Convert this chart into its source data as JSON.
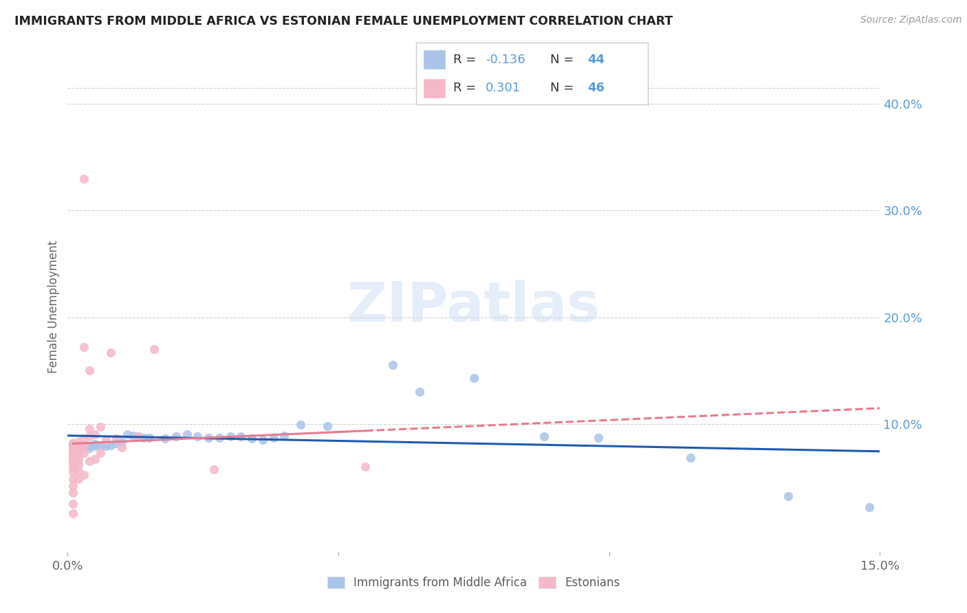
{
  "title": "IMMIGRANTS FROM MIDDLE AFRICA VS ESTONIAN FEMALE UNEMPLOYMENT CORRELATION CHART",
  "source": "Source: ZipAtlas.com",
  "ylabel": "Female Unemployment",
  "right_yticks": [
    "40.0%",
    "30.0%",
    "20.0%",
    "10.0%"
  ],
  "right_ytick_vals": [
    0.4,
    0.3,
    0.2,
    0.1
  ],
  "xlim": [
    0.0,
    0.15
  ],
  "ylim": [
    -0.02,
    0.44
  ],
  "legend_label1": "Immigrants from Middle Africa",
  "legend_label2": "Estonians",
  "blue_color": "#aac4e8",
  "pink_color": "#f5b8c8",
  "blue_line_color": "#1f5aad",
  "pink_line_color": "#e87a90",
  "blue_scatter": [
    [
      0.001,
      0.082
    ],
    [
      0.001,
      0.08
    ],
    [
      0.002,
      0.079
    ],
    [
      0.002,
      0.077
    ],
    [
      0.003,
      0.08
    ],
    [
      0.003,
      0.078
    ],
    [
      0.004,
      0.079
    ],
    [
      0.004,
      0.077
    ],
    [
      0.005,
      0.081
    ],
    [
      0.005,
      0.079
    ],
    [
      0.006,
      0.08
    ],
    [
      0.007,
      0.081
    ],
    [
      0.007,
      0.079
    ],
    [
      0.008,
      0.08
    ],
    [
      0.009,
      0.082
    ],
    [
      0.01,
      0.083
    ],
    [
      0.011,
      0.09
    ],
    [
      0.012,
      0.089
    ],
    [
      0.013,
      0.088
    ],
    [
      0.014,
      0.087
    ],
    [
      0.015,
      0.087
    ],
    [
      0.018,
      0.086
    ],
    [
      0.02,
      0.088
    ],
    [
      0.022,
      0.09
    ],
    [
      0.024,
      0.088
    ],
    [
      0.026,
      0.087
    ],
    [
      0.028,
      0.087
    ],
    [
      0.03,
      0.088
    ],
    [
      0.032,
      0.088
    ],
    [
      0.034,
      0.086
    ],
    [
      0.036,
      0.085
    ],
    [
      0.038,
      0.087
    ],
    [
      0.04,
      0.089
    ],
    [
      0.043,
      0.099
    ],
    [
      0.048,
      0.098
    ],
    [
      0.06,
      0.155
    ],
    [
      0.065,
      0.13
    ],
    [
      0.075,
      0.143
    ],
    [
      0.088,
      0.088
    ],
    [
      0.098,
      0.087
    ],
    [
      0.115,
      0.068
    ],
    [
      0.133,
      0.032
    ],
    [
      0.148,
      0.022
    ]
  ],
  "pink_scatter": [
    [
      0.001,
      0.082
    ],
    [
      0.001,
      0.079
    ],
    [
      0.001,
      0.077
    ],
    [
      0.001,
      0.074
    ],
    [
      0.001,
      0.072
    ],
    [
      0.001,
      0.069
    ],
    [
      0.001,
      0.066
    ],
    [
      0.001,
      0.063
    ],
    [
      0.001,
      0.059
    ],
    [
      0.001,
      0.055
    ],
    [
      0.001,
      0.048
    ],
    [
      0.001,
      0.042
    ],
    [
      0.001,
      0.035
    ],
    [
      0.001,
      0.025
    ],
    [
      0.001,
      0.016
    ],
    [
      0.002,
      0.083
    ],
    [
      0.002,
      0.08
    ],
    [
      0.002,
      0.077
    ],
    [
      0.002,
      0.074
    ],
    [
      0.002,
      0.07
    ],
    [
      0.002,
      0.066
    ],
    [
      0.002,
      0.062
    ],
    [
      0.002,
      0.055
    ],
    [
      0.002,
      0.048
    ],
    [
      0.003,
      0.33
    ],
    [
      0.003,
      0.172
    ],
    [
      0.003,
      0.086
    ],
    [
      0.003,
      0.08
    ],
    [
      0.003,
      0.073
    ],
    [
      0.003,
      0.052
    ],
    [
      0.004,
      0.15
    ],
    [
      0.004,
      0.095
    ],
    [
      0.004,
      0.088
    ],
    [
      0.004,
      0.065
    ],
    [
      0.005,
      0.09
    ],
    [
      0.005,
      0.067
    ],
    [
      0.006,
      0.097
    ],
    [
      0.006,
      0.073
    ],
    [
      0.007,
      0.085
    ],
    [
      0.008,
      0.167
    ],
    [
      0.009,
      0.086
    ],
    [
      0.01,
      0.078
    ],
    [
      0.013,
      0.088
    ],
    [
      0.016,
      0.17
    ],
    [
      0.027,
      0.057
    ],
    [
      0.055,
      0.06
    ]
  ],
  "watermark": "ZIPatlas",
  "background_color": "#ffffff",
  "grid_color": "#d0d0d0"
}
